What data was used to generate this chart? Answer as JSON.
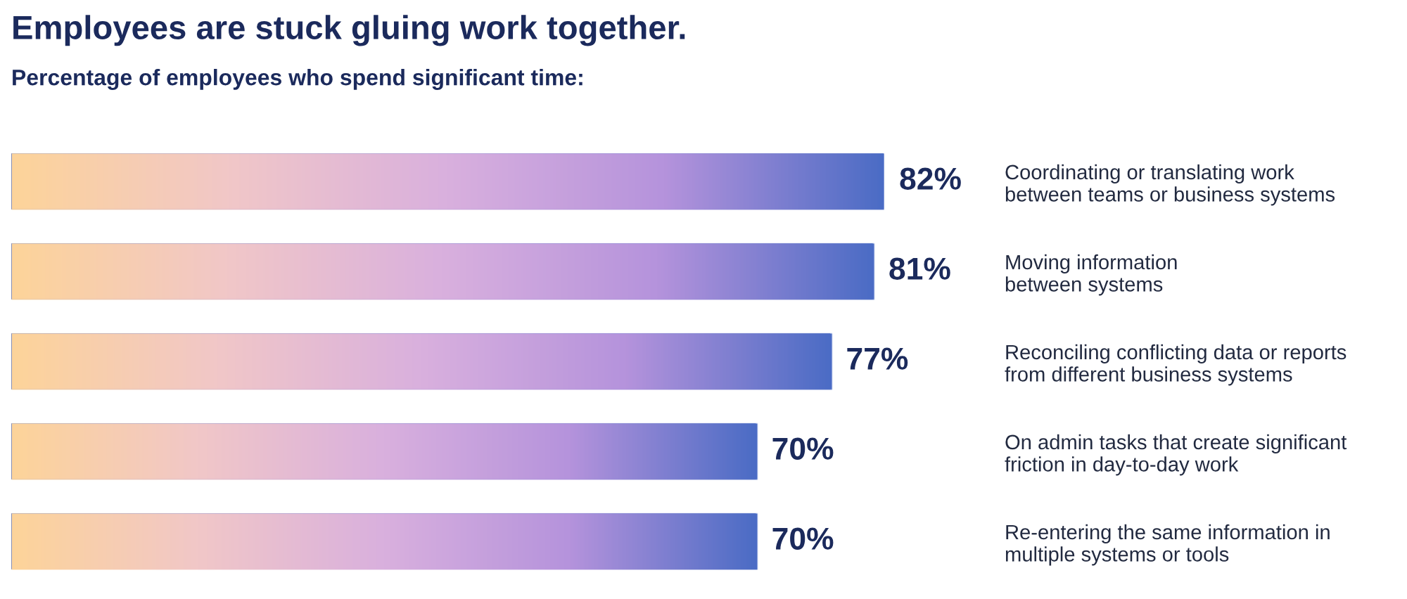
{
  "chart_data": {
    "type": "bar",
    "orientation": "horizontal",
    "title": "Employees are stuck gluing work together.",
    "subtitle": "Percentage of employees who spend significant time:",
    "categories": [
      "Coordinating or translating work\nbetween teams or business systems",
      "Moving information\nbetween systems",
      "Reconciling conflicting data or reports\nfrom different business systems",
      "On admin tasks that create significant\nfriction in day-to-day work",
      "Re-entering the same information in\nmultiple systems or tools"
    ],
    "values": [
      82,
      81,
      77,
      70,
      70
    ],
    "value_labels": [
      "82%",
      "81%",
      "77%",
      "70%",
      "70%"
    ],
    "color": "#4b6cc5",
    "tick_labels": "y",
    "grid": false
  }
}
